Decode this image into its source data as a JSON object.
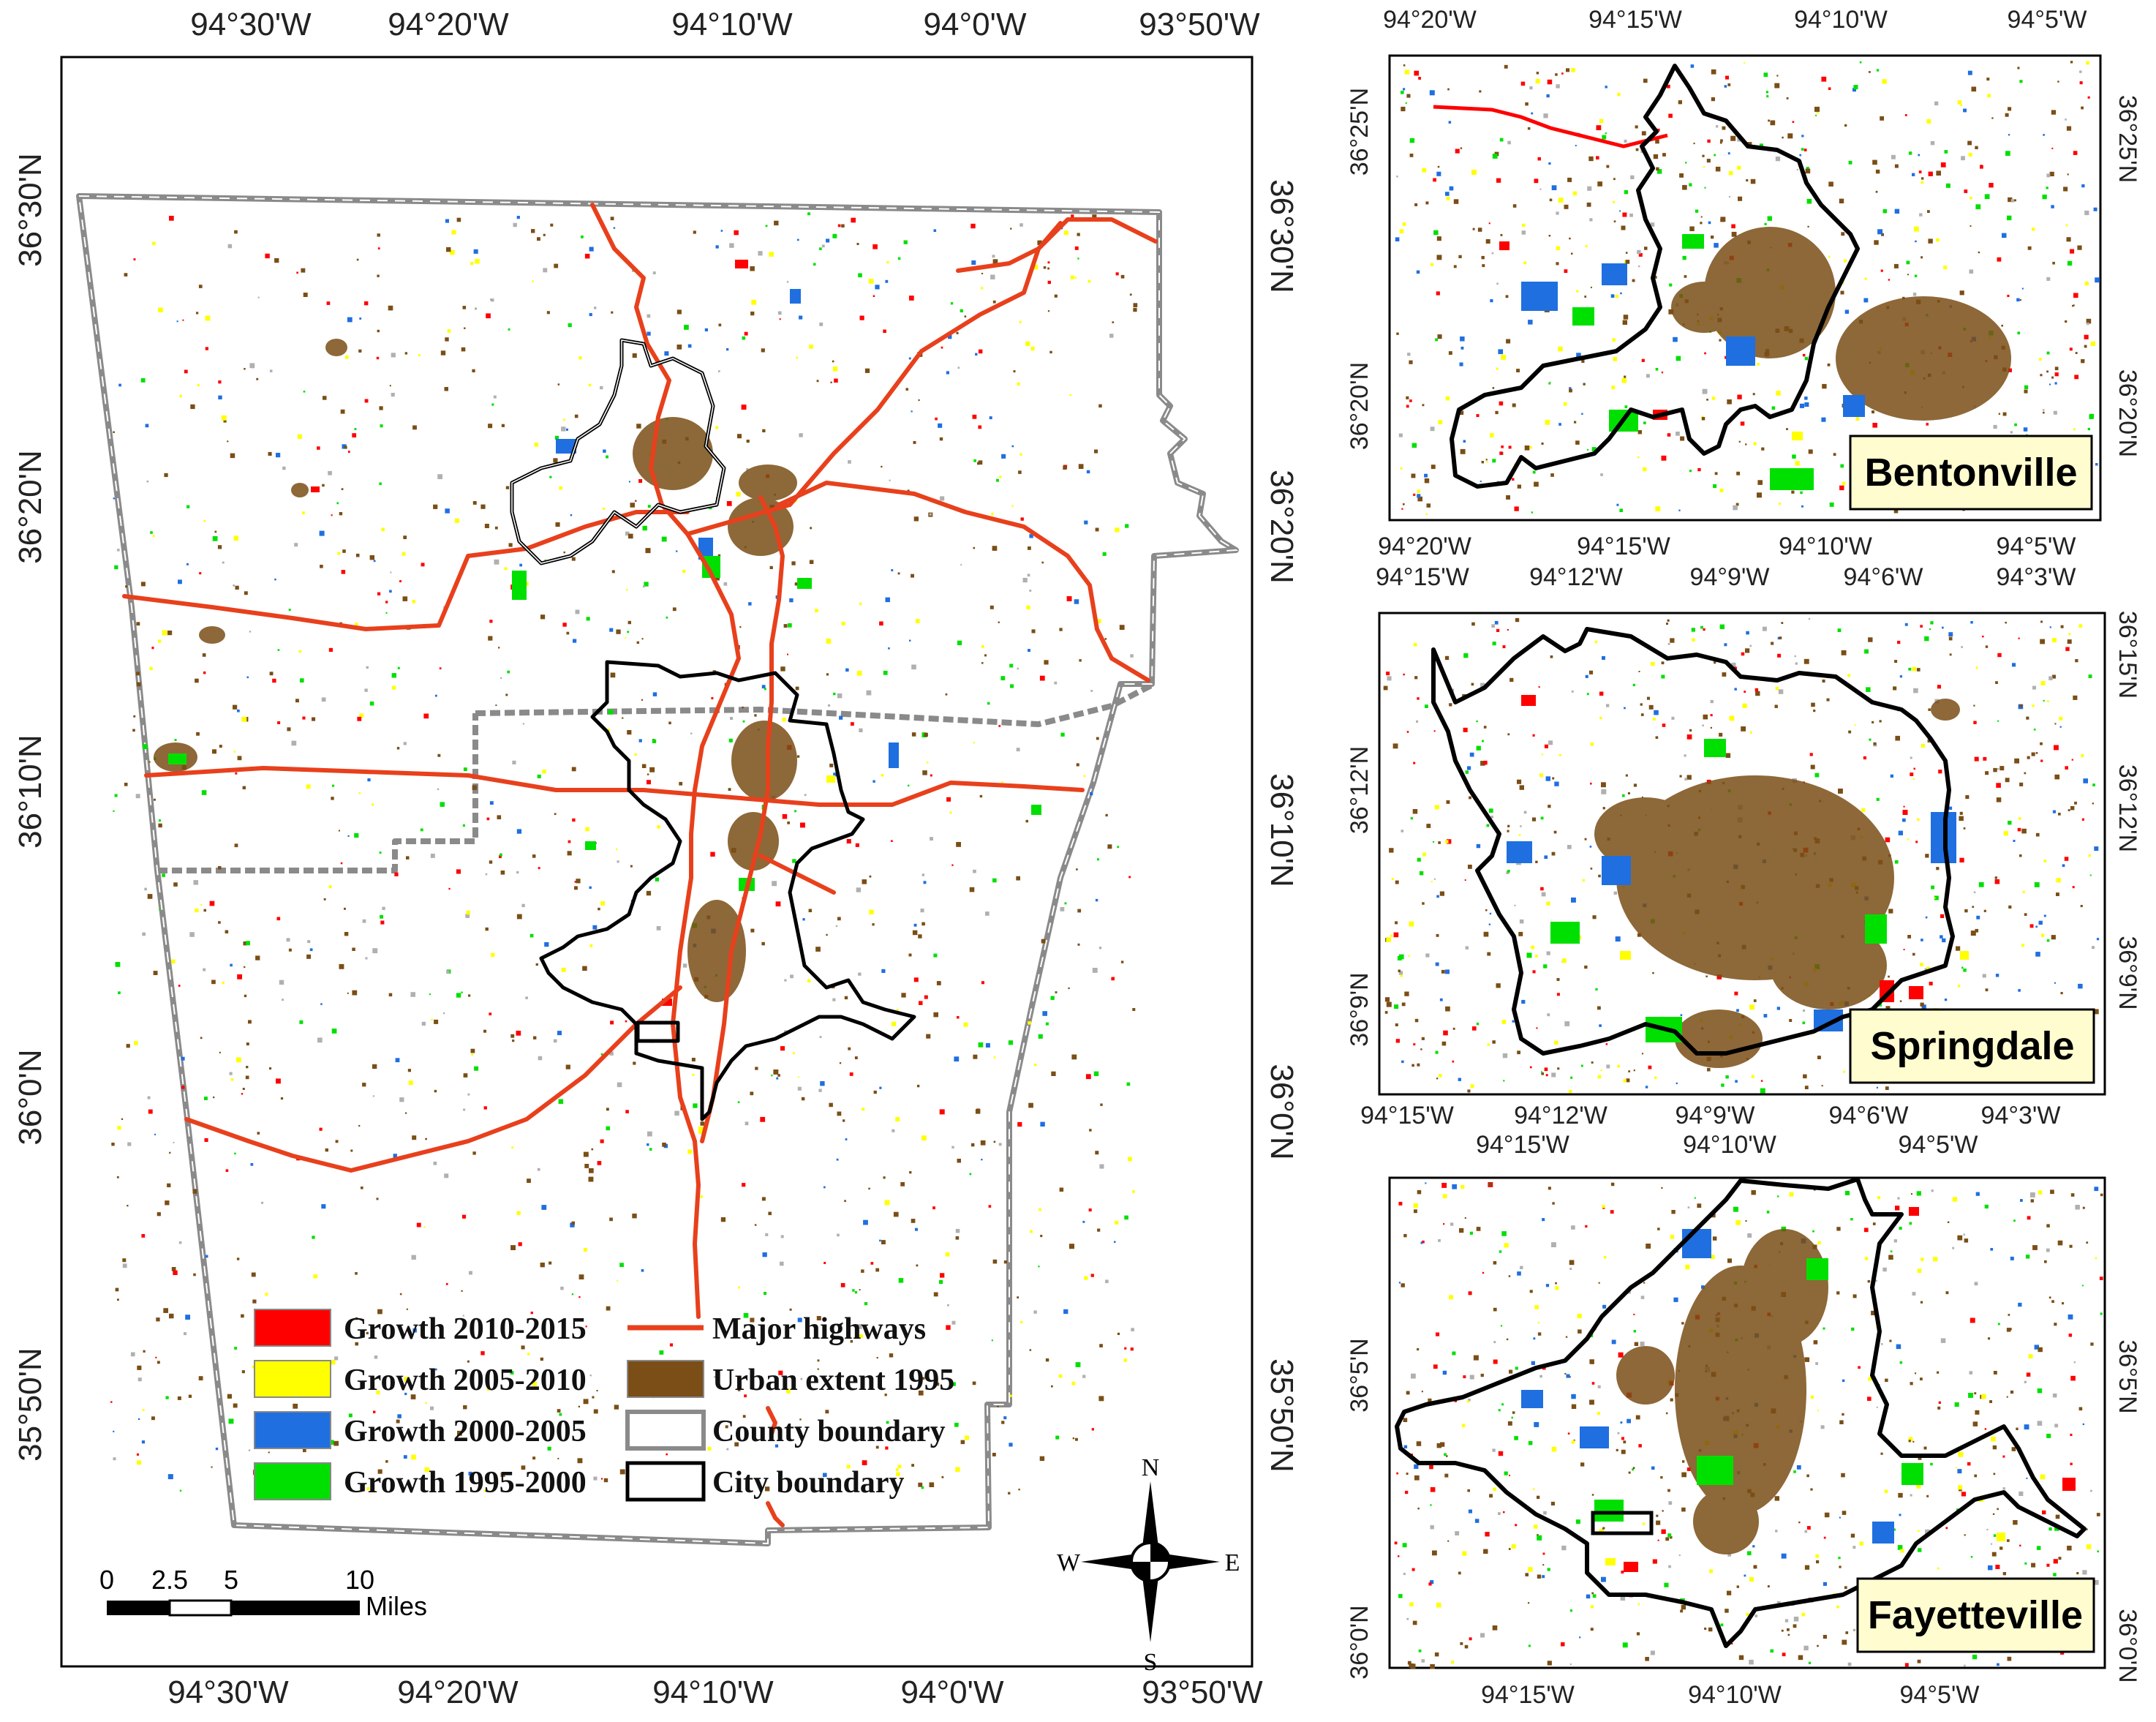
{
  "main_map": {
    "top_labels": [
      "94°30'W",
      "94°20'W",
      "94°10'W",
      "94°0'W",
      "93°50'W"
    ],
    "bottom_labels": [
      "94°30'W",
      "94°20'W",
      "94°10'W",
      "94°0'W",
      "93°50'W"
    ],
    "left_labels": [
      "36°30'N",
      "36°20'N",
      "36°10'N",
      "36°0'N",
      "35°50'N"
    ],
    "right_labels": [
      "36°30'N",
      "36°20'N",
      "36°10'N",
      "36°0'N",
      "35°50'N"
    ]
  },
  "legend": {
    "items": [
      {
        "label": "Growth 2010-2015",
        "color": "#ff0000"
      },
      {
        "label": "Growth 2005-2010",
        "color": "#ffff00"
      },
      {
        "label": "Growth 2000-2005",
        "color": "#1f6fe0"
      },
      {
        "label": "Growth 1995-2000",
        "color": "#00e000"
      },
      {
        "label": "Major highways",
        "color": "#e8401c"
      },
      {
        "label": "Urban extent 1995",
        "color": "#7a4e16"
      },
      {
        "label": "County boundary",
        "color": "#888888"
      },
      {
        "label": "City boundary",
        "color": "#000000"
      }
    ]
  },
  "scale_bar": {
    "ticks": [
      "0",
      "2.5",
      "5",
      "10"
    ],
    "unit": "Miles"
  },
  "compass": {
    "n": "N",
    "s": "S",
    "e": "E",
    "w": "W"
  },
  "insets": [
    {
      "name": "Bentonville",
      "top_labels": [
        "94°20'W",
        "94°15'W",
        "94°10'W",
        "94°5'W"
      ],
      "bottom_labels": [
        "94°20'W",
        "94°15'W",
        "94°10'W",
        "94°5'W"
      ],
      "left_labels": [
        "36°25'N",
        "36°20'N"
      ],
      "right_labels": [
        "36°25'N",
        "36°20'N"
      ]
    },
    {
      "name": "Springdale",
      "top_labels": [
        "94°15'W",
        "94°12'W",
        "94°9'W",
        "94°6'W",
        "94°3'W"
      ],
      "bottom_labels": [
        "94°15'W",
        "94°12'W",
        "94°9'W",
        "94°6'W",
        "94°3'W"
      ],
      "left_labels": [
        "36°12'N",
        "36°9'N"
      ],
      "right_labels": [
        "36°15'N",
        "36°12'N",
        "36°9'N"
      ]
    },
    {
      "name": "Fayetteville",
      "top_labels": [
        "94°15'W",
        "94°10'W",
        "94°5'W"
      ],
      "bottom_labels": [
        "94°15'W",
        "94°10'W",
        "94°5'W"
      ],
      "left_labels": [
        "36°5'N",
        "36°0'N"
      ],
      "right_labels": [
        "36°5'N",
        "36°0'N"
      ]
    }
  ]
}
